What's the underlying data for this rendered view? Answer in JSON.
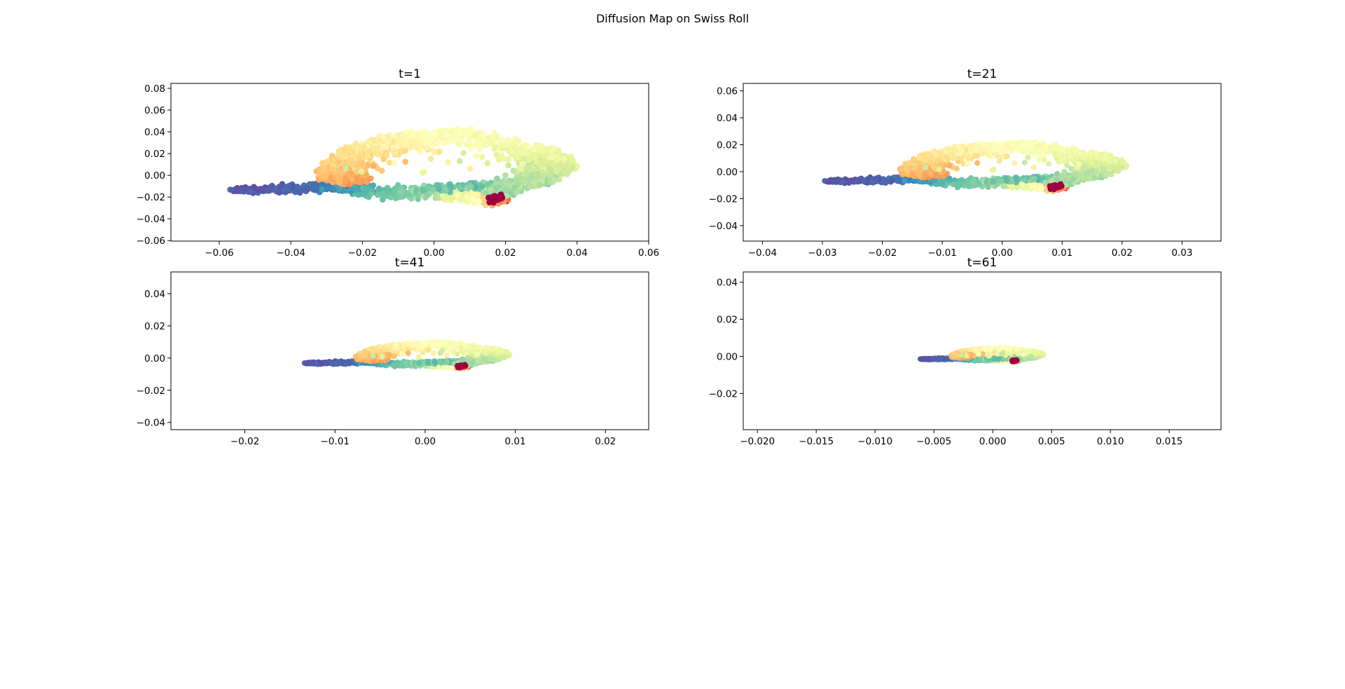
{
  "figure": {
    "title": "Diffusion Map on Swiss Roll"
  },
  "chart_data": [
    {
      "type": "scatter",
      "title": "t=1",
      "xlim": [
        -0.0735,
        0.06
      ],
      "ylim": [
        -0.0605,
        0.0845
      ],
      "xticks": [
        -0.06,
        -0.04,
        -0.02,
        0.0,
        0.02,
        0.04,
        0.06
      ],
      "xtick_labels": [
        "−0.06",
        "−0.04",
        "−0.02",
        "0.00",
        "0.02",
        "0.04",
        "0.06"
      ],
      "yticks": [
        -0.06,
        -0.04,
        -0.02,
        0.0,
        0.02,
        0.04,
        0.06,
        0.08
      ],
      "ytick_labels": [
        "−0.06",
        "−0.04",
        "−0.02",
        "0.00",
        "0.02",
        "0.04",
        "0.06",
        "0.08"
      ],
      "scale": 1.0,
      "grid": false
    },
    {
      "type": "scatter",
      "title": "t=21",
      "xlim": [
        -0.0432,
        0.0365
      ],
      "ylim": [
        -0.0515,
        0.0655
      ],
      "xticks": [
        -0.04,
        -0.03,
        -0.02,
        -0.01,
        0.0,
        0.01,
        0.02,
        0.03
      ],
      "xtick_labels": [
        "−0.04",
        "−0.03",
        "−0.02",
        "−0.01",
        "0.00",
        "0.01",
        "0.02",
        "0.03"
      ],
      "yticks": [
        -0.04,
        -0.02,
        0.0,
        0.02,
        0.04,
        0.06
      ],
      "ytick_labels": [
        "−0.04",
        "−0.02",
        "0.00",
        "0.02",
        "0.04",
        "0.06"
      ],
      "scale": 0.52,
      "grid": false
    },
    {
      "type": "scatter",
      "title": "t=41",
      "xlim": [
        -0.0282,
        0.0248
      ],
      "ylim": [
        -0.0445,
        0.0535
      ],
      "xticks": [
        -0.02,
        -0.01,
        0.0,
        0.01,
        0.02
      ],
      "xtick_labels": [
        "−0.02",
        "−0.01",
        "0.00",
        "0.01",
        "0.02"
      ],
      "yticks": [
        -0.04,
        -0.02,
        0.0,
        0.02,
        0.04
      ],
      "ytick_labels": [
        "−0.04",
        "−0.02",
        "0.00",
        "0.02",
        "0.04"
      ],
      "scale": 0.235,
      "grid": false
    },
    {
      "type": "scatter",
      "title": "t=61",
      "xlim": [
        -0.0212,
        0.0194
      ],
      "ylim": [
        -0.0395,
        0.0455
      ],
      "xticks": [
        -0.02,
        -0.015,
        -0.01,
        -0.005,
        0.0,
        0.005,
        0.01,
        0.015
      ],
      "xtick_labels": [
        "−0.020",
        "−0.015",
        "−0.010",
        "−0.005",
        "0.000",
        "0.005",
        "0.010",
        "0.015"
      ],
      "yticks": [
        -0.02,
        0.0,
        0.02,
        0.04
      ],
      "ytick_labels": [
        "−0.02",
        "0.00",
        "0.02",
        "0.04"
      ],
      "scale": 0.108,
      "grid": false
    }
  ],
  "colormap": {
    "name": "Spectral",
    "colors": [
      "#9e0142",
      "#d53e4f",
      "#f46d43",
      "#fdae61",
      "#fee08b",
      "#ffffbf",
      "#e6f598",
      "#abdda4",
      "#66c2a5",
      "#3288bd",
      "#5e4fa2"
    ]
  }
}
